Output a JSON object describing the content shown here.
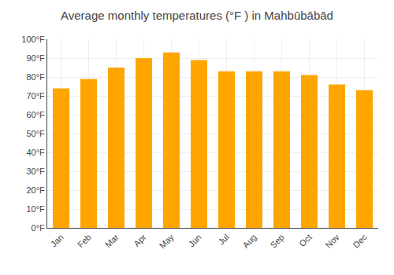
{
  "chart_data": {
    "type": "bar",
    "title": "Average monthly temperatures (°F ) in Mahbūbābād",
    "categories": [
      "Jan",
      "Feb",
      "Mar",
      "Apr",
      "May",
      "Jun",
      "Jul",
      "Aug",
      "Sep",
      "Oct",
      "Nov",
      "Dec"
    ],
    "values": [
      74,
      79,
      85,
      90,
      93,
      89,
      83,
      83,
      83,
      81,
      76,
      73
    ],
    "color": "#FFA500",
    "ylim": [
      0,
      100
    ],
    "yticks": [
      {
        "value": 0,
        "label": "0°F"
      },
      {
        "value": 10,
        "label": "10°F"
      },
      {
        "value": 20,
        "label": "20°F"
      },
      {
        "value": 30,
        "label": "30°F"
      },
      {
        "value": 40,
        "label": "40°F"
      },
      {
        "value": 50,
        "label": "50°F"
      },
      {
        "value": 60,
        "label": "60°F"
      },
      {
        "value": 70,
        "label": "70°F"
      },
      {
        "value": 80,
        "label": "80°F"
      },
      {
        "value": 90,
        "label": "90°F"
      },
      {
        "value": 100,
        "label": "100°F"
      }
    ],
    "grid": true
  }
}
